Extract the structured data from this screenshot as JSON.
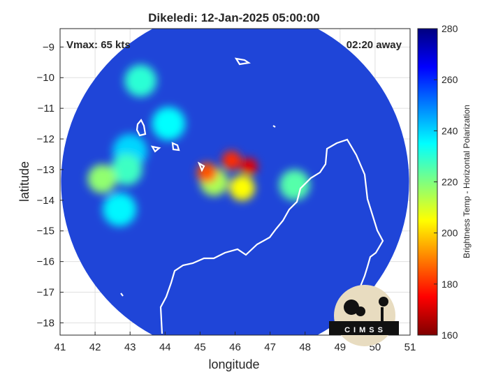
{
  "chart_data": {
    "type": "heatmap",
    "title": "Dikeledi: 12-Jan-2025 05:00:00",
    "xlabel": "longitude",
    "ylabel": "latitude",
    "xlim": [
      41,
      51
    ],
    "ylim": [
      -18.4,
      -8.4
    ],
    "xticks": [
      41,
      42,
      43,
      44,
      45,
      46,
      47,
      48,
      49,
      50,
      51
    ],
    "yticks": [
      -18,
      -17,
      -16,
      -15,
      -14,
      -13,
      -12,
      -11,
      -10,
      -9
    ],
    "grid": true,
    "annotations": {
      "vmax": "Vmax: 65 kts",
      "away": "02:20 away"
    },
    "colorbar": {
      "label": "Brightness Temp - Horizontal Polarization",
      "range": [
        160,
        280
      ],
      "ticks": [
        160,
        180,
        200,
        220,
        240,
        260,
        280
      ],
      "colormap": "jet"
    },
    "scan_swath": {
      "center_lon": 46.0,
      "center_lat": -13.4,
      "radius_deg": 5.3
    },
    "storm_core": [
      {
        "lon": 46.4,
        "lat": -12.9,
        "value": 172
      },
      {
        "lon": 45.9,
        "lat": -12.7,
        "value": 180
      },
      {
        "lon": 45.2,
        "lat": -13.1,
        "value": 185
      },
      {
        "lon": 46.2,
        "lat": -13.6,
        "value": 205
      },
      {
        "lon": 47.7,
        "lat": -13.5,
        "value": 225
      },
      {
        "lon": 45.4,
        "lat": -13.4,
        "value": 215
      },
      {
        "lon": 43.3,
        "lat": -10.1,
        "value": 230
      },
      {
        "lon": 42.9,
        "lat": -13.0,
        "value": 228
      },
      {
        "lon": 42.2,
        "lat": -13.3,
        "value": 218
      },
      {
        "lon": 44.1,
        "lat": -11.5,
        "value": 235
      },
      {
        "lon": 43.0,
        "lat": -12.4,
        "value": 240
      },
      {
        "lon": 42.7,
        "lat": -14.3,
        "value": 236
      }
    ]
  },
  "logo": {
    "text": "CIMSS"
  },
  "colors": {
    "coast": "#ffffff",
    "background_field": "#1a3fd0"
  }
}
